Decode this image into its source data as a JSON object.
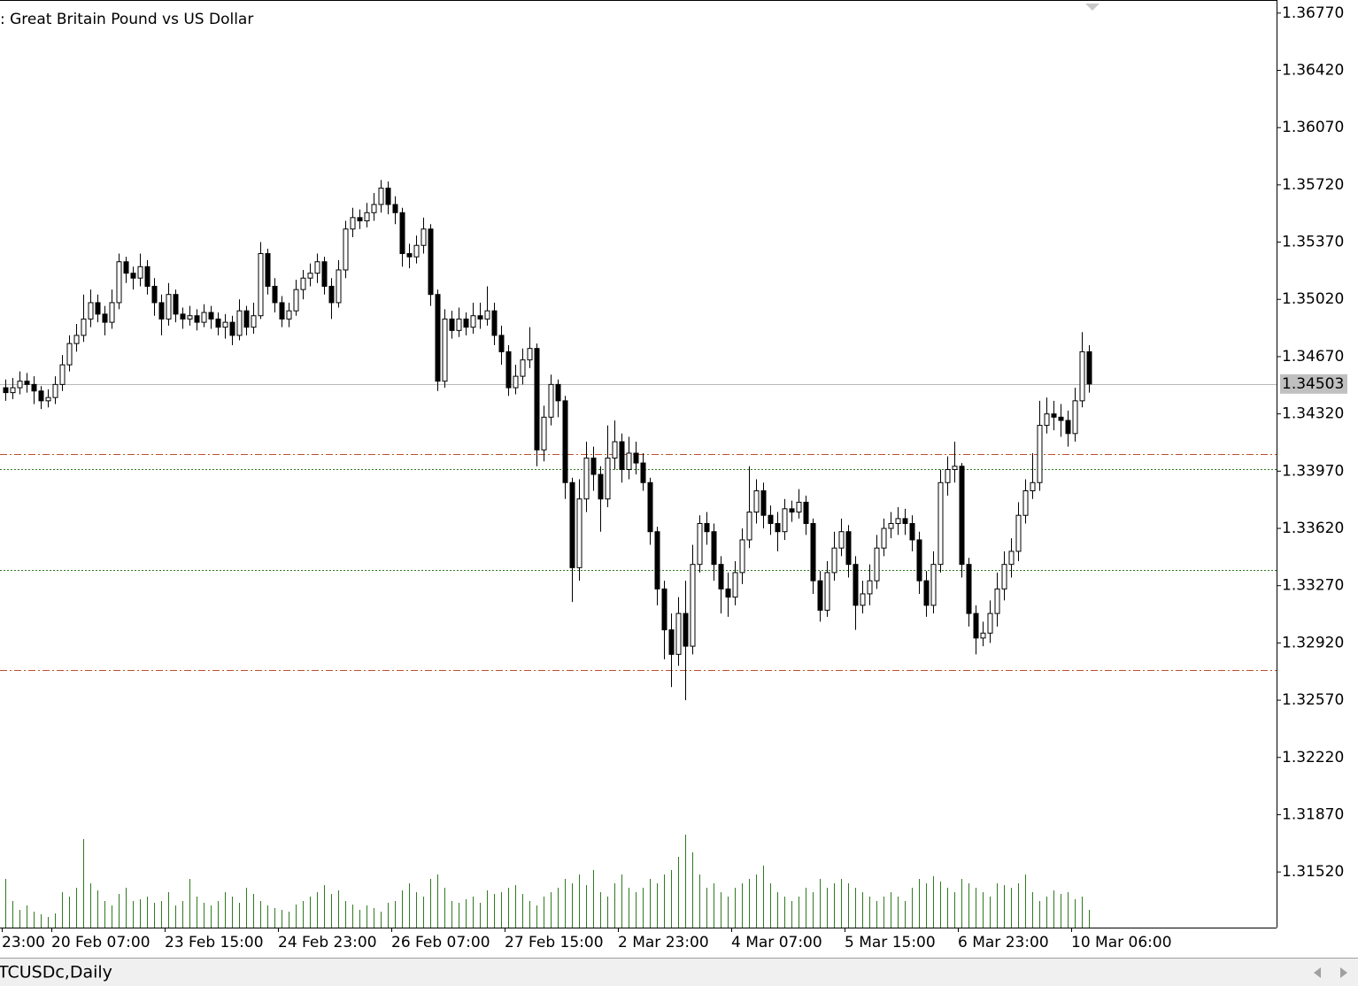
{
  "chart_data": {
    "type": "candlestick",
    "title": ":  Great Britain Pound vs US Dollar",
    "categories": [
      "23:00",
      null,
      null,
      null,
      null,
      null,
      null,
      "20 Feb 07:00",
      null,
      null,
      null,
      null,
      null,
      null,
      null,
      null,
      null,
      null,
      null,
      null,
      null,
      null,
      null,
      "23 Feb 15:00",
      null,
      null,
      null,
      null,
      null,
      null,
      null,
      null,
      null,
      null,
      null,
      null,
      null,
      null,
      null,
      "24 Feb 23:00",
      null,
      null,
      null,
      null,
      null,
      null,
      null,
      null,
      null,
      null,
      null,
      null,
      null,
      null,
      null,
      "26 Feb 07:00",
      null,
      null,
      null,
      null,
      null,
      null,
      null,
      null,
      null,
      null,
      null,
      null,
      null,
      null,
      null,
      "27 Feb 15:00",
      null,
      null,
      null,
      null,
      null,
      null,
      null,
      null,
      null,
      null,
      null,
      null,
      null,
      null,
      null,
      "2 Mar 23:00",
      null,
      null,
      null,
      null,
      null,
      null,
      null,
      null,
      null,
      null,
      null,
      null,
      null,
      null,
      null,
      "4 Mar 07:00",
      null,
      null,
      null,
      null,
      null,
      null,
      null,
      null,
      null,
      null,
      null,
      null,
      null,
      null,
      null,
      "5 Mar 15:00",
      null,
      null,
      null,
      null,
      null,
      null,
      null,
      null,
      null,
      null,
      null,
      null,
      null,
      null,
      null,
      "6 Mar 23:00",
      null,
      null,
      null,
      null,
      null,
      null,
      null,
      null,
      null,
      null,
      null,
      null,
      null,
      null,
      null,
      "10 Mar 06:00",
      null,
      null
    ],
    "open": [
      1.3448,
      1.3445,
      1.3448,
      1.3452,
      1.345,
      1.3446,
      1.344,
      1.3442,
      1.345,
      1.3462,
      1.3475,
      1.348,
      1.349,
      1.35,
      1.3493,
      1.3488,
      1.35,
      1.3525,
      1.3518,
      1.3515,
      1.3522,
      1.351,
      1.35,
      1.349,
      1.3505,
      1.3493,
      1.349,
      1.3492,
      1.3488,
      1.3494,
      1.349,
      1.3485,
      1.3488,
      1.348,
      1.3495,
      1.3485,
      1.3492,
      1.353,
      1.351,
      1.35,
      1.349,
      1.3495,
      1.3508,
      1.3515,
      1.3518,
      1.3525,
      1.351,
      1.35,
      1.352,
      1.3545,
      1.3552,
      1.355,
      1.3555,
      1.356,
      1.357,
      1.356,
      1.3555,
      1.353,
      1.3528,
      1.3535,
      1.3545,
      1.3505,
      1.3452,
      1.349,
      1.3483,
      1.349,
      1.3485,
      1.3492,
      1.349,
      1.3495,
      1.348,
      1.347,
      1.3448,
      1.3455,
      1.3465,
      1.3472,
      1.341,
      1.343,
      1.345,
      1.344,
      1.339,
      1.3338,
      1.338,
      1.3405,
      1.3395,
      1.338,
      1.3405,
      1.3415,
      1.3398,
      1.3408,
      1.3402,
      1.339,
      1.336,
      1.3325,
      1.33,
      1.3285,
      1.331,
      1.329,
      1.334,
      1.3365,
      1.336,
      1.334,
      1.3325,
      1.332,
      1.3335,
      1.3355,
      1.3372,
      1.3385,
      1.337,
      1.3365,
      1.336,
      1.3374,
      1.3372,
      1.3378,
      1.3365,
      1.333,
      1.3312,
      1.3335,
      1.335,
      1.336,
      1.334,
      1.3315,
      1.3322,
      1.333,
      1.335,
      1.3362,
      1.3365,
      1.3368,
      1.3365,
      1.3355,
      1.333,
      1.3315,
      1.334,
      1.339,
      1.3398,
      1.34,
      1.334,
      1.331,
      1.3295,
      1.3298,
      1.331,
      1.3325,
      1.334,
      1.3348,
      1.337,
      1.3385,
      1.339,
      1.3425,
      1.3432,
      1.343,
      1.3428,
      1.342,
      1.344,
      1.347
    ],
    "high": [
      1.3453,
      1.3454,
      1.3458,
      1.3457,
      1.3455,
      1.3449,
      1.3447,
      1.3455,
      1.3468,
      1.348,
      1.3487,
      1.3505,
      1.3508,
      1.3505,
      1.3498,
      1.3508,
      1.353,
      1.3528,
      1.3522,
      1.353,
      1.3526,
      1.3515,
      1.3505,
      1.3512,
      1.3508,
      1.3497,
      1.3498,
      1.3496,
      1.3499,
      1.3498,
      1.3494,
      1.3493,
      1.3492,
      1.3502,
      1.3498,
      1.35,
      1.3537,
      1.3533,
      1.3515,
      1.3504,
      1.35,
      1.3514,
      1.352,
      1.3524,
      1.353,
      1.3528,
      1.3515,
      1.3526,
      1.355,
      1.3558,
      1.3557,
      1.3561,
      1.3567,
      1.3575,
      1.3574,
      1.3565,
      1.3558,
      1.3536,
      1.3541,
      1.3552,
      1.3548,
      1.3508,
      1.3496,
      1.3495,
      1.3497,
      1.3494,
      1.35,
      1.35,
      1.351,
      1.35,
      1.3486,
      1.3474,
      1.3462,
      1.3472,
      1.3485,
      1.3475,
      1.3437,
      1.3456,
      1.3453,
      1.3443,
      1.3393,
      1.3392,
      1.3415,
      1.3412,
      1.34,
      1.3425,
      1.3428,
      1.342,
      1.3418,
      1.3415,
      1.3408,
      1.3393,
      1.3363,
      1.333,
      1.331,
      1.332,
      1.333,
      1.3352,
      1.337,
      1.3372,
      1.3365,
      1.3345,
      1.3335,
      1.3342,
      1.3362,
      1.34,
      1.3392,
      1.339,
      1.3376,
      1.3372,
      1.338,
      1.3379,
      1.3386,
      1.3382,
      1.3368,
      1.3336,
      1.3342,
      1.336,
      1.3368,
      1.3364,
      1.3345,
      1.333,
      1.334,
      1.3358,
      1.3368,
      1.3372,
      1.3375,
      1.3374,
      1.337,
      1.336,
      1.3336,
      1.3348,
      1.3398,
      1.3406,
      1.3415,
      1.3402,
      1.3344,
      1.3315,
      1.3305,
      1.3318,
      1.3335,
      1.3348,
      1.3356,
      1.3378,
      1.3392,
      1.3408,
      1.344,
      1.3442,
      1.344,
      1.3438,
      1.3434,
      1.3448,
      1.3482,
      1.3474
    ],
    "low": [
      1.344,
      1.3441,
      1.3444,
      1.3445,
      1.3438,
      1.3435,
      1.3436,
      1.3438,
      1.3446,
      1.3458,
      1.347,
      1.3476,
      1.3485,
      1.3488,
      1.348,
      1.3484,
      1.3496,
      1.3512,
      1.3508,
      1.351,
      1.3505,
      1.3492,
      1.348,
      1.3486,
      1.3488,
      1.3484,
      1.3486,
      1.3483,
      1.3485,
      1.3484,
      1.348,
      1.3478,
      1.3474,
      1.3477,
      1.348,
      1.3481,
      1.349,
      1.3505,
      1.3494,
      1.3485,
      1.3485,
      1.3492,
      1.3502,
      1.351,
      1.3512,
      1.3505,
      1.349,
      1.3497,
      1.3515,
      1.354,
      1.3545,
      1.3546,
      1.355,
      1.3555,
      1.3554,
      1.3548,
      1.3522,
      1.3521,
      1.3524,
      1.353,
      1.3498,
      1.3446,
      1.3448,
      1.3478,
      1.3479,
      1.348,
      1.3481,
      1.3484,
      1.3486,
      1.3474,
      1.3462,
      1.3443,
      1.3444,
      1.345,
      1.346,
      1.34,
      1.3403,
      1.3425,
      1.343,
      1.338,
      1.3317,
      1.333,
      1.3372,
      1.3385,
      1.336,
      1.3375,
      1.3398,
      1.339,
      1.3392,
      1.3395,
      1.3385,
      1.3352,
      1.3315,
      1.3282,
      1.3265,
      1.3278,
      1.3257,
      1.3285,
      1.3335,
      1.3352,
      1.333,
      1.331,
      1.3308,
      1.3315,
      1.3328,
      1.335,
      1.3365,
      1.3362,
      1.3358,
      1.3348,
      1.3355,
      1.3366,
      1.3368,
      1.3358,
      1.3322,
      1.3305,
      1.3308,
      1.333,
      1.3345,
      1.3332,
      1.33,
      1.331,
      1.3315,
      1.3325,
      1.3345,
      1.3356,
      1.3358,
      1.3358,
      1.3348,
      1.3322,
      1.3308,
      1.331,
      1.3335,
      1.3382,
      1.339,
      1.3332,
      1.3302,
      1.3285,
      1.329,
      1.3292,
      1.3302,
      1.3318,
      1.3332,
      1.3342,
      1.3365,
      1.338,
      1.3385,
      1.342,
      1.3422,
      1.3418,
      1.3412,
      1.3415,
      1.3436,
      1.3445
    ],
    "close": [
      1.3445,
      1.3448,
      1.3452,
      1.345,
      1.3446,
      1.344,
      1.3442,
      1.345,
      1.3462,
      1.3475,
      1.348,
      1.349,
      1.35,
      1.3493,
      1.3488,
      1.35,
      1.3525,
      1.3518,
      1.3515,
      1.3522,
      1.351,
      1.35,
      1.349,
      1.3505,
      1.3493,
      1.349,
      1.3492,
      1.3488,
      1.3494,
      1.349,
      1.3485,
      1.3488,
      1.348,
      1.3495,
      1.3485,
      1.3492,
      1.353,
      1.351,
      1.35,
      1.349,
      1.3495,
      1.3508,
      1.3515,
      1.3518,
      1.3525,
      1.351,
      1.35,
      1.352,
      1.3545,
      1.3552,
      1.355,
      1.3555,
      1.356,
      1.357,
      1.356,
      1.3555,
      1.353,
      1.3528,
      1.3535,
      1.3545,
      1.3505,
      1.3452,
      1.349,
      1.3483,
      1.349,
      1.3485,
      1.3492,
      1.349,
      1.3495,
      1.348,
      1.347,
      1.3448,
      1.3455,
      1.3465,
      1.3472,
      1.341,
      1.343,
      1.345,
      1.344,
      1.339,
      1.3338,
      1.338,
      1.3405,
      1.3395,
      1.338,
      1.3405,
      1.3415,
      1.3398,
      1.3408,
      1.3402,
      1.339,
      1.336,
      1.3325,
      1.33,
      1.3285,
      1.331,
      1.329,
      1.334,
      1.3365,
      1.336,
      1.334,
      1.3325,
      1.332,
      1.3335,
      1.3355,
      1.3372,
      1.3385,
      1.337,
      1.3365,
      1.336,
      1.3374,
      1.3372,
      1.3378,
      1.3365,
      1.333,
      1.3312,
      1.3335,
      1.335,
      1.336,
      1.334,
      1.3315,
      1.3322,
      1.333,
      1.335,
      1.3362,
      1.3365,
      1.3368,
      1.3365,
      1.3355,
      1.333,
      1.3315,
      1.334,
      1.339,
      1.3398,
      1.34,
      1.334,
      1.331,
      1.3295,
      1.3298,
      1.331,
      1.3325,
      1.334,
      1.3348,
      1.337,
      1.3385,
      1.339,
      1.3425,
      1.3432,
      1.343,
      1.3428,
      1.342,
      1.344,
      1.347,
      1.34503
    ],
    "bull_color": "#ffffff",
    "bear_color": "#000000",
    "volume": {
      "color": "#2f7a1f",
      "ylim": [
        0,
        1200
      ],
      "values": [
        550,
        300,
        200,
        250,
        180,
        150,
        120,
        160,
        400,
        350,
        450,
        1000,
        500,
        420,
        300,
        250,
        380,
        450,
        300,
        320,
        350,
        280,
        300,
        400,
        250,
        300,
        550,
        350,
        280,
        250,
        300,
        400,
        350,
        280,
        450,
        380,
        300,
        250,
        220,
        200,
        180,
        260,
        300,
        350,
        400,
        480,
        380,
        420,
        300,
        260,
        200,
        250,
        220,
        180,
        280,
        300,
        420,
        500,
        400,
        350,
        550,
        600,
        450,
        300,
        280,
        320,
        350,
        280,
        420,
        380,
        400,
        450,
        480,
        380,
        300,
        250,
        350,
        400,
        450,
        550,
        500,
        600,
        480,
        650,
        400,
        350,
        500,
        600,
        450,
        400,
        450,
        550,
        500,
        600,
        650,
        800,
        1050,
        850,
        600,
        450,
        500,
        400,
        350,
        450,
        500,
        550,
        600,
        700,
        500,
        400,
        350,
        300,
        350,
        450,
        400,
        550,
        450,
        500,
        550,
        500,
        450,
        400,
        350,
        300,
        350,
        400,
        350,
        300,
        450,
        550,
        500,
        580,
        520,
        450,
        400,
        550,
        500,
        450,
        400,
        350,
        500,
        480,
        450,
        500,
        600,
        400,
        300,
        350,
        420,
        380,
        400,
        320,
        350,
        200
      ]
    },
    "ylim": [
      1.3118,
      1.3685
    ],
    "yticks": [
      {
        "value": 1.3677,
        "label": "1.36770"
      },
      {
        "value": 1.3642,
        "label": "1.36420"
      },
      {
        "value": 1.3607,
        "label": "1.36070"
      },
      {
        "value": 1.3572,
        "label": "1.35720"
      },
      {
        "value": 1.3537,
        "label": "1.35370"
      },
      {
        "value": 1.3502,
        "label": "1.35020"
      },
      {
        "value": 1.3467,
        "label": "1.34670"
      },
      {
        "value": 1.3432,
        "label": "1.34320"
      },
      {
        "value": 1.3397,
        "label": "1.33970"
      },
      {
        "value": 1.3362,
        "label": "1.33620"
      },
      {
        "value": 1.3327,
        "label": "1.33270"
      },
      {
        "value": 1.3292,
        "label": "1.32920"
      },
      {
        "value": 1.3257,
        "label": "1.32570"
      },
      {
        "value": 1.3222,
        "label": "1.32220"
      },
      {
        "value": 1.3187,
        "label": "1.31870"
      },
      {
        "value": 1.3152,
        "label": "1.31520"
      }
    ],
    "current_price": 1.34503,
    "levels": [
      {
        "value": 1.34072,
        "color": "#c0502c",
        "style": "dash-dot"
      },
      {
        "value": 1.33985,
        "color": "#2f7a1f",
        "style": "dotted"
      },
      {
        "value": 1.33364,
        "color": "#2f7a1f",
        "style": "dotted"
      },
      {
        "value": 1.32753,
        "color": "#c0502c",
        "style": "dash-dot"
      }
    ]
  },
  "tab": {
    "label": "TCUSDc,Daily"
  }
}
